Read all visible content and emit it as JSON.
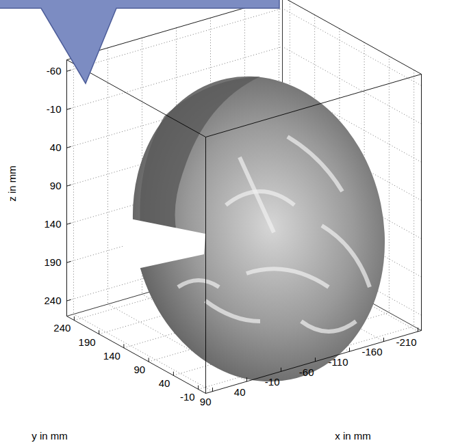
{
  "chart_data": {
    "type": "surface",
    "xlabel": "x in mm",
    "ylabel": "y in mm",
    "zlabel": "z in mm",
    "xlim": [
      100,
      -215
    ],
    "ylim": [
      -25,
      255
    ],
    "zlim": [
      -75,
      260
    ],
    "xticks": [
      90,
      40,
      -10,
      -60,
      -110,
      -160,
      -210
    ],
    "yticks": [
      -10,
      40,
      90,
      140,
      190,
      240
    ],
    "zticks": [
      -60,
      -10,
      40,
      90,
      140,
      190,
      240
    ],
    "grid": true,
    "color": "#5a5a5a"
  }
}
